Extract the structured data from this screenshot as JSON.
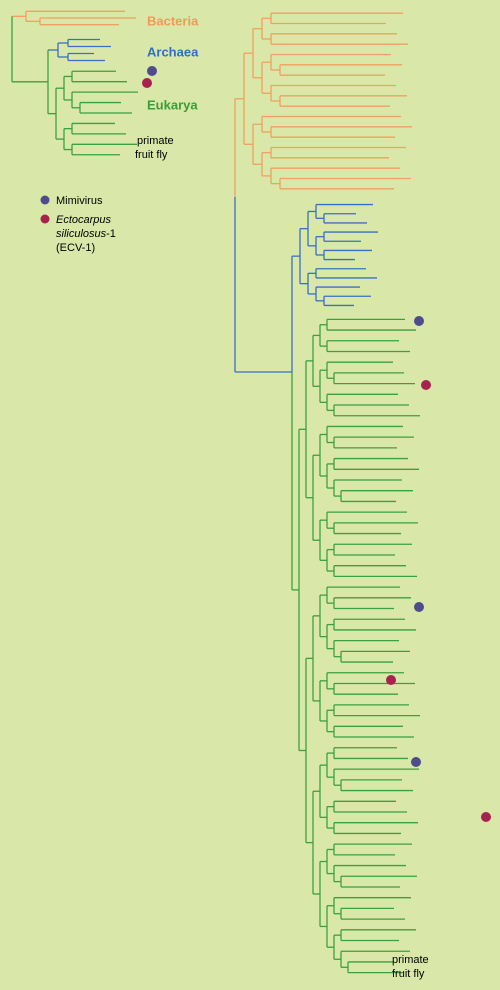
{
  "small_tree": {
    "groups": {
      "bacteria": "Bacteria",
      "archaea": "Archaea",
      "eukarya": "Eukarya"
    },
    "leaves": [
      "primate",
      "fruit fly"
    ]
  },
  "legend": {
    "mimivirus": "Mimivirus",
    "ectocarpus": {
      "genus": "Ectocarpus",
      "species": "siliculosus",
      "suffix": "-1",
      "code": "(ECV-1)"
    }
  },
  "large_tree": {
    "leaves": [
      "primate",
      "fruit fly"
    ]
  }
}
